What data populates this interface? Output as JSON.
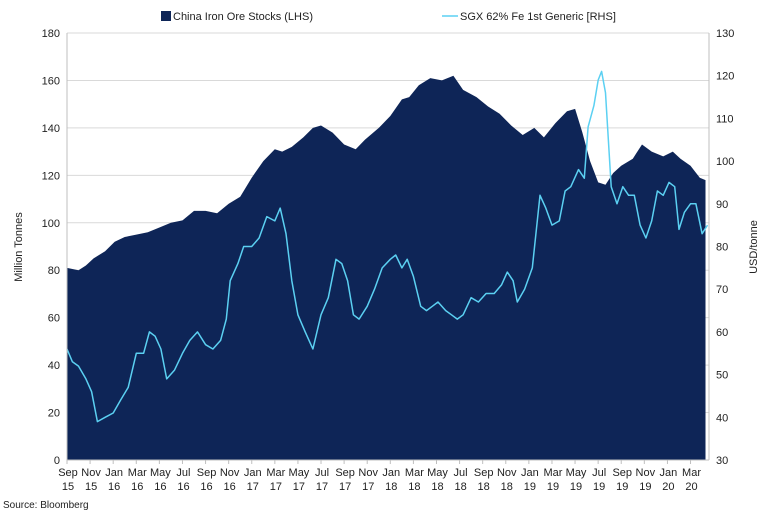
{
  "chart_data": {
    "type": "area",
    "legend": {
      "placement": "top"
    },
    "source": "Source: Bloomberg",
    "x_start": "2015-09",
    "x_ticks": [
      {
        "month": "Sep",
        "year": "15"
      },
      {
        "month": "Nov",
        "year": "15"
      },
      {
        "month": "Jan",
        "year": "16"
      },
      {
        "month": "Mar",
        "year": "16"
      },
      {
        "month": "May",
        "year": "16"
      },
      {
        "month": "Jul",
        "year": "16"
      },
      {
        "month": "Sep",
        "year": "16"
      },
      {
        "month": "Nov",
        "year": "16"
      },
      {
        "month": "Jan",
        "year": "17"
      },
      {
        "month": "Mar",
        "year": "17"
      },
      {
        "month": "May",
        "year": "17"
      },
      {
        "month": "Jul",
        "year": "17"
      },
      {
        "month": "Sep",
        "year": "17"
      },
      {
        "month": "Nov",
        "year": "17"
      },
      {
        "month": "Jan",
        "year": "18"
      },
      {
        "month": "Mar",
        "year": "18"
      },
      {
        "month": "May",
        "year": "18"
      },
      {
        "month": "Jul",
        "year": "18"
      },
      {
        "month": "Sep",
        "year": "18"
      },
      {
        "month": "Nov",
        "year": "18"
      },
      {
        "month": "Jan",
        "year": "19"
      },
      {
        "month": "Mar",
        "year": "19"
      },
      {
        "month": "May",
        "year": "19"
      },
      {
        "month": "Jul",
        "year": "19"
      },
      {
        "month": "Sep",
        "year": "19"
      },
      {
        "month": "Nov",
        "year": "19"
      },
      {
        "month": "Jan",
        "year": "20"
      },
      {
        "month": "Mar",
        "year": "20"
      }
    ],
    "y_left": {
      "label": "Million Tonnes",
      "min": 0,
      "max": 180,
      "ticks": [
        0,
        20,
        40,
        60,
        80,
        100,
        120,
        140,
        160,
        180
      ]
    },
    "y_right": {
      "label": "USD/tonne",
      "min": 30,
      "max": 130,
      "ticks": [
        30,
        40,
        50,
        60,
        70,
        80,
        90,
        100,
        110,
        120,
        130
      ]
    },
    "grid": true,
    "series": [
      {
        "name": "China Iron Ore Stocks (LHS)",
        "axis": "left",
        "kind": "area",
        "color": "#0e2557",
        "points": [
          [
            "2015-09-01",
            81
          ],
          [
            "2015-10-01",
            80
          ],
          [
            "2015-10-20",
            82
          ],
          [
            "2015-11-10",
            85
          ],
          [
            "2015-12-10",
            88
          ],
          [
            "2016-01-05",
            92
          ],
          [
            "2016-02-01",
            94
          ],
          [
            "2016-03-01",
            95
          ],
          [
            "2016-04-01",
            96
          ],
          [
            "2016-05-01",
            98
          ],
          [
            "2016-06-01",
            100
          ],
          [
            "2016-07-01",
            101
          ],
          [
            "2016-08-01",
            105
          ],
          [
            "2016-09-01",
            105
          ],
          [
            "2016-10-01",
            104
          ],
          [
            "2016-11-01",
            108
          ],
          [
            "2016-12-01",
            111
          ],
          [
            "2017-01-01",
            119
          ],
          [
            "2017-02-01",
            126
          ],
          [
            "2017-03-01",
            131
          ],
          [
            "2017-03-20",
            130
          ],
          [
            "2017-04-15",
            132
          ],
          [
            "2017-05-15",
            136
          ],
          [
            "2017-06-10",
            140
          ],
          [
            "2017-07-01",
            141
          ],
          [
            "2017-08-01",
            138
          ],
          [
            "2017-09-01",
            133
          ],
          [
            "2017-10-01",
            131
          ],
          [
            "2017-10-25",
            135
          ],
          [
            "2017-12-01",
            140
          ],
          [
            "2018-01-01",
            145
          ],
          [
            "2018-02-01",
            152
          ],
          [
            "2018-02-20",
            153
          ],
          [
            "2018-03-15",
            158
          ],
          [
            "2018-04-15",
            161
          ],
          [
            "2018-05-15",
            160
          ],
          [
            "2018-06-15",
            162
          ],
          [
            "2018-07-10",
            156
          ],
          [
            "2018-08-15",
            153
          ],
          [
            "2018-09-15",
            149
          ],
          [
            "2018-10-15",
            146
          ],
          [
            "2018-11-15",
            141
          ],
          [
            "2018-12-15",
            137
          ],
          [
            "2019-01-15",
            140
          ],
          [
            "2019-02-10",
            136
          ],
          [
            "2019-03-10",
            142
          ],
          [
            "2019-04-10",
            147
          ],
          [
            "2019-05-01",
            148
          ],
          [
            "2019-05-20",
            138
          ],
          [
            "2019-06-10",
            126
          ],
          [
            "2019-07-01",
            117
          ],
          [
            "2019-07-20",
            116
          ],
          [
            "2019-08-10",
            121
          ],
          [
            "2019-09-01",
            124
          ],
          [
            "2019-10-01",
            127
          ],
          [
            "2019-10-25",
            133
          ],
          [
            "2019-11-20",
            130
          ],
          [
            "2019-12-20",
            128
          ],
          [
            "2020-01-15",
            130
          ],
          [
            "2020-02-05",
            127
          ],
          [
            "2020-03-01",
            124
          ],
          [
            "2020-03-25",
            119
          ],
          [
            "2020-04-10",
            118
          ]
        ]
      },
      {
        "name": "SGX 62% Fe 1st Generic [RHS]",
        "axis": "right",
        "kind": "line",
        "color": "#5bd0f2",
        "points": [
          [
            "2015-09-01",
            56
          ],
          [
            "2015-09-15",
            53
          ],
          [
            "2015-10-01",
            52
          ],
          [
            "2015-10-20",
            49
          ],
          [
            "2015-11-05",
            46
          ],
          [
            "2015-11-20",
            39
          ],
          [
            "2015-12-10",
            40
          ],
          [
            "2016-01-01",
            41
          ],
          [
            "2016-01-20",
            44
          ],
          [
            "2016-02-10",
            47
          ],
          [
            "2016-03-01",
            55
          ],
          [
            "2016-03-20",
            55
          ],
          [
            "2016-04-05",
            60
          ],
          [
            "2016-04-20",
            59
          ],
          [
            "2016-05-05",
            56
          ],
          [
            "2016-05-20",
            49
          ],
          [
            "2016-06-10",
            51
          ],
          [
            "2016-07-01",
            55
          ],
          [
            "2016-07-20",
            58
          ],
          [
            "2016-08-10",
            60
          ],
          [
            "2016-09-01",
            57
          ],
          [
            "2016-09-20",
            56
          ],
          [
            "2016-10-10",
            58
          ],
          [
            "2016-10-25",
            63
          ],
          [
            "2016-11-05",
            72
          ],
          [
            "2016-11-25",
            76
          ],
          [
            "2016-12-10",
            80
          ],
          [
            "2017-01-01",
            80
          ],
          [
            "2017-01-20",
            82
          ],
          [
            "2017-02-10",
            87
          ],
          [
            "2017-03-01",
            86
          ],
          [
            "2017-03-15",
            89
          ],
          [
            "2017-03-30",
            83
          ],
          [
            "2017-04-15",
            72
          ],
          [
            "2017-05-01",
            64
          ],
          [
            "2017-05-20",
            60
          ],
          [
            "2017-06-10",
            56
          ],
          [
            "2017-07-01",
            64
          ],
          [
            "2017-07-20",
            68
          ],
          [
            "2017-08-10",
            77
          ],
          [
            "2017-08-25",
            76
          ],
          [
            "2017-09-10",
            72
          ],
          [
            "2017-09-25",
            64
          ],
          [
            "2017-10-10",
            63
          ],
          [
            "2017-11-01",
            66
          ],
          [
            "2017-11-20",
            70
          ],
          [
            "2017-12-10",
            75
          ],
          [
            "2018-01-01",
            77
          ],
          [
            "2018-01-15",
            78
          ],
          [
            "2018-02-01",
            75
          ],
          [
            "2018-02-15",
            77
          ],
          [
            "2018-03-01",
            73
          ],
          [
            "2018-03-20",
            66
          ],
          [
            "2018-04-05",
            65
          ],
          [
            "2018-04-20",
            66
          ],
          [
            "2018-05-05",
            67
          ],
          [
            "2018-05-25",
            65
          ],
          [
            "2018-06-10",
            64
          ],
          [
            "2018-06-25",
            63
          ],
          [
            "2018-07-10",
            64
          ],
          [
            "2018-08-01",
            68
          ],
          [
            "2018-08-20",
            67
          ],
          [
            "2018-09-10",
            69
          ],
          [
            "2018-10-01",
            69
          ],
          [
            "2018-10-20",
            71
          ],
          [
            "2018-11-05",
            74
          ],
          [
            "2018-11-20",
            72
          ],
          [
            "2018-12-01",
            67
          ],
          [
            "2018-12-20",
            70
          ],
          [
            "2019-01-10",
            75
          ],
          [
            "2019-01-30",
            92
          ],
          [
            "2019-02-15",
            89
          ],
          [
            "2019-03-01",
            85
          ],
          [
            "2019-03-20",
            86
          ],
          [
            "2019-04-05",
            93
          ],
          [
            "2019-04-20",
            94
          ],
          [
            "2019-05-10",
            98
          ],
          [
            "2019-05-25",
            96
          ],
          [
            "2019-06-05",
            108
          ],
          [
            "2019-06-20",
            113
          ],
          [
            "2019-07-01",
            119
          ],
          [
            "2019-07-10",
            121
          ],
          [
            "2019-07-20",
            116
          ],
          [
            "2019-08-05",
            94
          ],
          [
            "2019-08-20",
            90
          ],
          [
            "2019-09-05",
            94
          ],
          [
            "2019-09-20",
            92
          ],
          [
            "2019-10-05",
            92
          ],
          [
            "2019-10-20",
            85
          ],
          [
            "2019-11-05",
            82
          ],
          [
            "2019-11-20",
            86
          ],
          [
            "2019-12-05",
            93
          ],
          [
            "2019-12-20",
            92
          ],
          [
            "2020-01-05",
            95
          ],
          [
            "2020-01-20",
            94
          ],
          [
            "2020-02-01",
            84
          ],
          [
            "2020-02-15",
            88
          ],
          [
            "2020-03-01",
            90
          ],
          [
            "2020-03-15",
            90
          ],
          [
            "2020-04-01",
            83
          ],
          [
            "2020-04-15",
            85
          ]
        ]
      }
    ]
  }
}
